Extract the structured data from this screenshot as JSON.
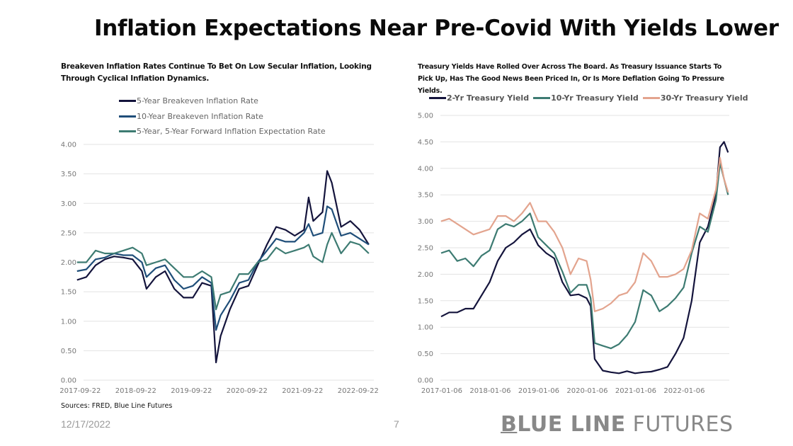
{
  "title": "Inflation Expectations Near Pre-Covid With Yields Lower",
  "footer": {
    "date": "12/17/2022",
    "page": "7",
    "logo_bold_first": "B",
    "logo_bold_rest": "LUE LINE",
    "logo_light": "FUTURES",
    "source": "Sources: FRED, Blue Line Futures"
  },
  "colors": {
    "dark_navy": "#14143c",
    "navy_blue": "#1f4e79",
    "teal": "#3d7b72",
    "salmon": "#e3a48e",
    "grid": "#e3e3e3"
  },
  "chart_data": [
    {
      "type": "line",
      "title": "Breakeven Inflation Rates Continue To Bet On Low Secular Inflation, Looking Through Cyclical Inflation Dynamics.",
      "xlabel": "",
      "ylabel": "",
      "ylim": [
        0,
        4
      ],
      "yticks": [
        "0.00",
        "0.50",
        "1.00",
        "1.50",
        "2.00",
        "2.50",
        "3.00",
        "3.50",
        "4.00"
      ],
      "xticks": [
        "2017-09-22",
        "2018-09-22",
        "2019-09-22",
        "2020-09-22",
        "2021-09-22",
        "2022-09-22"
      ],
      "grid": true,
      "legend_position": "top",
      "x": [
        "2017-09",
        "2017-11",
        "2018-01",
        "2018-03",
        "2018-05",
        "2018-07",
        "2018-09",
        "2018-11",
        "2018-12",
        "2019-02",
        "2019-04",
        "2019-06",
        "2019-08",
        "2019-10",
        "2019-12",
        "2020-02",
        "2020-03",
        "2020-04",
        "2020-06",
        "2020-08",
        "2020-10",
        "2020-12",
        "2021-02",
        "2021-04",
        "2021-06",
        "2021-08",
        "2021-10",
        "2021-11",
        "2021-12",
        "2022-02",
        "2022-03",
        "2022-04",
        "2022-06",
        "2022-08",
        "2022-10",
        "2022-12"
      ],
      "series": [
        {
          "name": "5-Year Breakeven Inflation Rate",
          "color": "#14143c",
          "values": [
            1.7,
            1.75,
            1.95,
            2.05,
            2.1,
            2.08,
            2.05,
            1.85,
            1.55,
            1.75,
            1.85,
            1.55,
            1.4,
            1.4,
            1.65,
            1.6,
            0.3,
            0.75,
            1.2,
            1.55,
            1.6,
            1.95,
            2.3,
            2.6,
            2.55,
            2.45,
            2.55,
            3.1,
            2.7,
            2.85,
            3.55,
            3.35,
            2.6,
            2.7,
            2.55,
            2.3
          ]
        },
        {
          "name": "10-Year Breakeven Inflation Rate",
          "color": "#1f4e79",
          "values": [
            1.85,
            1.88,
            2.05,
            2.08,
            2.15,
            2.12,
            2.12,
            2.0,
            1.75,
            1.9,
            1.95,
            1.7,
            1.55,
            1.6,
            1.75,
            1.65,
            0.85,
            1.1,
            1.35,
            1.65,
            1.7,
            2.0,
            2.2,
            2.4,
            2.35,
            2.35,
            2.5,
            2.65,
            2.45,
            2.5,
            2.95,
            2.9,
            2.45,
            2.5,
            2.4,
            2.3
          ]
        },
        {
          "name": "5-Year, 5-Year Forward Inflation Expectation Rate",
          "color": "#3d7b72",
          "values": [
            2.0,
            2.0,
            2.2,
            2.15,
            2.15,
            2.2,
            2.25,
            2.15,
            1.95,
            2.0,
            2.05,
            1.9,
            1.75,
            1.75,
            1.85,
            1.75,
            1.2,
            1.45,
            1.5,
            1.8,
            1.8,
            2.0,
            2.05,
            2.25,
            2.15,
            2.2,
            2.25,
            2.3,
            2.1,
            2.0,
            2.3,
            2.5,
            2.15,
            2.35,
            2.3,
            2.15
          ]
        }
      ]
    },
    {
      "type": "line",
      "title": "Treasury Yields Have Rolled Over Across The Board. As Treasury Issuance Starts To Pick Up, Has The Good News Been Priced In, Or Is More Deflation Going To Pressure Yields.",
      "xlabel": "",
      "ylabel": "",
      "ylim": [
        0,
        5
      ],
      "yticks": [
        "0.00",
        "0.50",
        "1.00",
        "1.50",
        "2.00",
        "2.50",
        "3.00",
        "3.50",
        "4.00",
        "4.50",
        "5.00"
      ],
      "xticks": [
        "2017-01-06",
        "2018-01-06",
        "2019-01-06",
        "2020-01-06",
        "2021-01-06",
        "2022-01-06"
      ],
      "grid": true,
      "legend_position": "top",
      "x": [
        "2017-01",
        "2017-03",
        "2017-05",
        "2017-07",
        "2017-09",
        "2017-11",
        "2018-01",
        "2018-03",
        "2018-05",
        "2018-07",
        "2018-09",
        "2018-11",
        "2019-01",
        "2019-03",
        "2019-05",
        "2019-07",
        "2019-09",
        "2019-11",
        "2020-01",
        "2020-02",
        "2020-03",
        "2020-05",
        "2020-07",
        "2020-09",
        "2020-11",
        "2021-01",
        "2021-03",
        "2021-05",
        "2021-07",
        "2021-09",
        "2021-11",
        "2022-01",
        "2022-03",
        "2022-05",
        "2022-07",
        "2022-09",
        "2022-10",
        "2022-11",
        "2022-12"
      ],
      "series": [
        {
          "name": "2-Yr Treasury Yield",
          "color": "#14143c",
          "values": [
            1.2,
            1.28,
            1.28,
            1.35,
            1.35,
            1.6,
            1.85,
            2.25,
            2.5,
            2.6,
            2.75,
            2.85,
            2.55,
            2.4,
            2.3,
            1.85,
            1.6,
            1.62,
            1.55,
            1.4,
            0.4,
            0.18,
            0.15,
            0.13,
            0.17,
            0.13,
            0.15,
            0.16,
            0.2,
            0.25,
            0.5,
            0.8,
            1.5,
            2.6,
            2.9,
            3.5,
            4.4,
            4.5,
            4.3
          ]
        },
        {
          "name": "10-Yr Treasury Yield",
          "color": "#3d7b72",
          "values": [
            2.4,
            2.45,
            2.25,
            2.3,
            2.15,
            2.35,
            2.45,
            2.85,
            2.95,
            2.9,
            3.0,
            3.15,
            2.7,
            2.55,
            2.4,
            2.05,
            1.65,
            1.8,
            1.8,
            1.55,
            0.7,
            0.65,
            0.6,
            0.68,
            0.85,
            1.1,
            1.7,
            1.6,
            1.3,
            1.4,
            1.55,
            1.75,
            2.4,
            2.9,
            2.8,
            3.4,
            4.1,
            3.8,
            3.5
          ]
        },
        {
          "name": "30-Yr Treasury Yield",
          "color": "#e3a48e",
          "values": [
            3.0,
            3.05,
            2.95,
            2.85,
            2.75,
            2.8,
            2.85,
            3.1,
            3.1,
            3.0,
            3.15,
            3.35,
            3.0,
            3.0,
            2.8,
            2.5,
            2.0,
            2.3,
            2.25,
            1.9,
            1.3,
            1.35,
            1.45,
            1.6,
            1.65,
            1.85,
            2.4,
            2.25,
            1.95,
            1.95,
            2.0,
            2.1,
            2.45,
            3.15,
            3.05,
            3.6,
            4.2,
            3.8,
            3.55
          ]
        }
      ]
    }
  ]
}
